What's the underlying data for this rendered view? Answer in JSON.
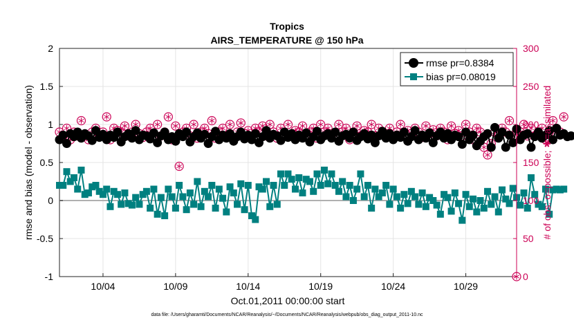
{
  "chart_data": {
    "type": "line",
    "title": "Tropics",
    "subtitle": "AIRS_TEMPERATURE @ 150 hPa",
    "xlabel": "Oct.01,2011 00:00:00 start",
    "ylabel": "rmse and bias (model - observation)",
    "y2label": "# of obs: o=possible; ✱=assimilated",
    "footer": "data file: /Users/gharamti/Documents/NCAR/Reanalysis/~/Documents/NCAR/Reanalysis/webpub/obs_diag_output_2011-10.nc",
    "xlim": [
      1,
      32.5
    ],
    "ylim": [
      -1,
      2
    ],
    "y2lim": [
      0,
      300
    ],
    "grid": true,
    "legend_position": "top-right",
    "x_ticks": [
      {
        "value": 4,
        "label": "10/04"
      },
      {
        "value": 9,
        "label": "10/09"
      },
      {
        "value": 14,
        "label": "10/14"
      },
      {
        "value": 19,
        "label": "10/19"
      },
      {
        "value": 24,
        "label": "10/24"
      },
      {
        "value": 29,
        "label": "10/29"
      }
    ],
    "y_ticks": [
      {
        "value": -1,
        "label": "-1"
      },
      {
        "value": -0.5,
        "label": "-0.5"
      },
      {
        "value": 0,
        "label": "0"
      },
      {
        "value": 0.5,
        "label": "0.5"
      },
      {
        "value": 1,
        "label": "1"
      },
      {
        "value": 1.5,
        "label": "1.5"
      },
      {
        "value": 2,
        "label": "2"
      }
    ],
    "y2_ticks": [
      {
        "value": 0,
        "label": "0"
      },
      {
        "value": 50,
        "label": "50"
      },
      {
        "value": 100,
        "label": "100"
      },
      {
        "value": 150,
        "label": "150"
      },
      {
        "value": 200,
        "label": "200"
      },
      {
        "value": 250,
        "label": "250"
      },
      {
        "value": 300,
        "label": "300"
      }
    ],
    "x_start": 1.0,
    "x_step": 0.25,
    "series": [
      {
        "name": "rmse",
        "legend": "rmse pr=0.8384",
        "color": "#000000",
        "marker": "circle",
        "axis": "left",
        "values": [
          0.8,
          0.86,
          0.75,
          0.88,
          0.84,
          0.9,
          0.82,
          0.88,
          0.85,
          0.79,
          0.92,
          0.83,
          0.87,
          0.8,
          0.86,
          0.83,
          0.9,
          0.77,
          0.84,
          0.88,
          0.82,
          0.92,
          0.8,
          0.86,
          0.85,
          0.81,
          0.89,
          0.76,
          0.85,
          0.9,
          0.8,
          0.84,
          0.78,
          0.88,
          0.84,
          0.9,
          0.77,
          0.84,
          0.89,
          0.82,
          0.87,
          0.75,
          0.84,
          0.91,
          0.8,
          0.86,
          0.82,
          0.88,
          0.78,
          0.84,
          0.9,
          0.81,
          0.86,
          0.8,
          0.88,
          0.76,
          0.84,
          0.92,
          0.82,
          0.87,
          0.85,
          0.79,
          0.9,
          0.83,
          0.88,
          0.8,
          0.86,
          0.82,
          0.89,
          0.77,
          0.84,
          0.91,
          0.8,
          0.85,
          0.88,
          0.82,
          0.9,
          0.78,
          0.85,
          0.87,
          0.82,
          0.9,
          0.79,
          0.84,
          0.88,
          0.81,
          0.86,
          0.76,
          0.85,
          0.91,
          0.82,
          0.88,
          0.8,
          0.86,
          0.83,
          0.9,
          0.78,
          0.84,
          0.92,
          0.8,
          0.86,
          0.82,
          0.89,
          0.76,
          0.85,
          0.9,
          0.82,
          0.88,
          0.8,
          0.86,
          0.84,
          0.74,
          0.9,
          0.8,
          0.86,
          0.72,
          0.78,
          0.84,
          0.88,
          0.7,
          0.96,
          0.82,
          0.9,
          0.7,
          0.86,
          0.76,
          0.94,
          0.8,
          0.86,
          0.88,
          0.7,
          0.84,
          0.9,
          0.82,
          0.86,
          0.92,
          0.8,
          0.95,
          0.86,
          0.88,
          0.84,
          0.85
        ]
      },
      {
        "name": "bias",
        "legend": "bias pr=0.08019",
        "color": "#008080",
        "marker": "square",
        "axis": "left",
        "values": [
          0.2,
          0.2,
          0.38,
          0.25,
          0.3,
          0.15,
          0.4,
          0.08,
          0.1,
          0.18,
          0.2,
          0.12,
          0.08,
          0.15,
          -0.08,
          0.12,
          0.08,
          -0.05,
          0.1,
          -0.04,
          -0.06,
          0.04,
          -0.05,
          0.08,
          0.12,
          -0.1,
          0.15,
          -0.18,
          0.04,
          -0.2,
          0.15,
          0.05,
          -0.1,
          0.2,
          0.05,
          -0.12,
          0.1,
          -0.05,
          0.25,
          -0.08,
          0.12,
          0.05,
          0.2,
          -0.1,
          0.15,
          0.03,
          -0.15,
          0.18,
          0.1,
          -0.05,
          0.22,
          -0.12,
          0.2,
          -0.2,
          -0.25,
          0.18,
          0.15,
          0.25,
          -0.08,
          0.2,
          -0.05,
          0.35,
          0.2,
          0.35,
          0.28,
          0.15,
          0.3,
          0.1,
          0.28,
          0.25,
          0.12,
          0.35,
          0.2,
          0.4,
          0.22,
          0.35,
          0.2,
          0.12,
          0.25,
          0.05,
          0.2,
          0.0,
          0.15,
          0.35,
          0.05,
          0.2,
          -0.1,
          0.15,
          0.05,
          0.1,
          0.2,
          -0.05,
          0.15,
          0.05,
          -0.1,
          0.08,
          -0.04,
          0.12,
          0.05,
          -0.05,
          0.1,
          -0.08,
          0.04,
          0.0,
          -0.06,
          -0.18,
          0.08,
          0.04,
          -0.14,
          0.1,
          -0.04,
          -0.26,
          0.08,
          -0.08,
          0.02,
          -0.15,
          0.0,
          -0.1,
          0.12,
          -0.05,
          0.05,
          -0.15,
          0.14,
          0.02,
          -0.04,
          0.16,
          0.04,
          -0.06,
          0.1,
          -0.1,
          0.3,
          0.08,
          -0.05,
          -0.08,
          0.15,
          -0.18,
          0.14,
          0.15,
          0.14,
          0.15
        ]
      },
      {
        "name": "possible obs",
        "color": "#cc0055",
        "marker": "circle-open",
        "axis": "right",
        "values": [
          190,
          185,
          195,
          180,
          190,
          185,
          205,
          185,
          180,
          190,
          195,
          185,
          190,
          210,
          180,
          195,
          192,
          190,
          198,
          185,
          190,
          200,
          188,
          183,
          190,
          195,
          185,
          200,
          185,
          190,
          210,
          180,
          198,
          145,
          190,
          195,
          185,
          200,
          182,
          190,
          195,
          188,
          205,
          182,
          190,
          195,
          185,
          200,
          180,
          190,
          202,
          188,
          192,
          185,
          195,
          190,
          198,
          185,
          200,
          190,
          182,
          195,
          188,
          200,
          185,
          192,
          190,
          198,
          185,
          190,
          195,
          182,
          200,
          190,
          195,
          188,
          185,
          200,
          190,
          195,
          180,
          190,
          198,
          185,
          192,
          190,
          200,
          185,
          195,
          190,
          188,
          195,
          182,
          190,
          200,
          185,
          192,
          188,
          195,
          190,
          183,
          198,
          188,
          193,
          185,
          195,
          190,
          180,
          198,
          188,
          192,
          185,
          200,
          190,
          180,
          195,
          190,
          170,
          160,
          175,
          190,
          185,
          195,
          190,
          205,
          185,
          192,
          190,
          200,
          185,
          195,
          185,
          190,
          195,
          180,
          190,
          205,
          195,
          190,
          210
        ]
      },
      {
        "name": "assimilated obs",
        "color": "#cc0055",
        "marker": "star",
        "axis": "right",
        "values": [
          190,
          185,
          195,
          180,
          190,
          185,
          205,
          185,
          180,
          190,
          195,
          185,
          190,
          210,
          180,
          195,
          192,
          190,
          198,
          185,
          190,
          200,
          188,
          183,
          190,
          195,
          185,
          200,
          185,
          190,
          210,
          180,
          198,
          145,
          190,
          195,
          185,
          200,
          182,
          190,
          195,
          188,
          205,
          182,
          190,
          195,
          185,
          200,
          180,
          190,
          202,
          188,
          192,
          185,
          195,
          190,
          198,
          185,
          200,
          190,
          182,
          195,
          188,
          200,
          185,
          192,
          190,
          198,
          185,
          190,
          195,
          182,
          200,
          190,
          195,
          188,
          185,
          200,
          190,
          195,
          180,
          190,
          198,
          185,
          192,
          190,
          200,
          185,
          195,
          190,
          188,
          195,
          182,
          190,
          200,
          185,
          192,
          188,
          195,
          190,
          183,
          198,
          188,
          193,
          185,
          195,
          190,
          180,
          198,
          188,
          192,
          185,
          200,
          190,
          180,
          195,
          190,
          170,
          160,
          175,
          190,
          185,
          195,
          190,
          205,
          185,
          192,
          190,
          200,
          185,
          195,
          185,
          190,
          195,
          180,
          190,
          205,
          195,
          190,
          210
        ]
      }
    ],
    "extra_points": [
      {
        "name": "zero-count marker",
        "x": 32.5,
        "y2": 0,
        "axis": "right"
      }
    ],
    "zero_line_color": "#b0b0b0",
    "left_axis_color": "#000000",
    "right_axis_color": "#cc0055"
  }
}
